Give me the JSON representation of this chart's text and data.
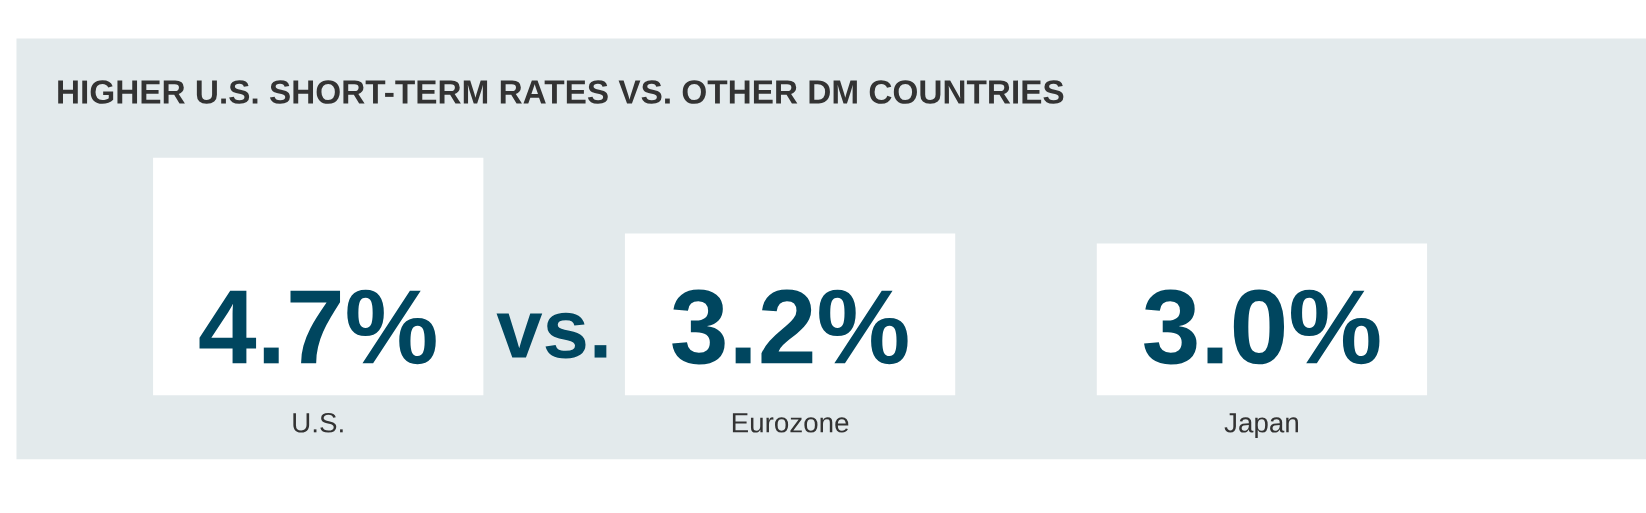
{
  "chart_data": {
    "type": "bar",
    "title": "HIGHER U.S. SHORT-TERM RATES VS. OTHER DM COUNTRIES",
    "categories": [
      "U.S.",
      "Eurozone",
      "Japan"
    ],
    "values": [
      4.7,
      3.2,
      3.0
    ],
    "value_labels": [
      "4.7%",
      "3.2%",
      "3.0%"
    ],
    "colors": [
      "#ffffff",
      "#ffffff",
      "#ffffff"
    ],
    "annotations": [
      "vs."
    ]
  }
}
